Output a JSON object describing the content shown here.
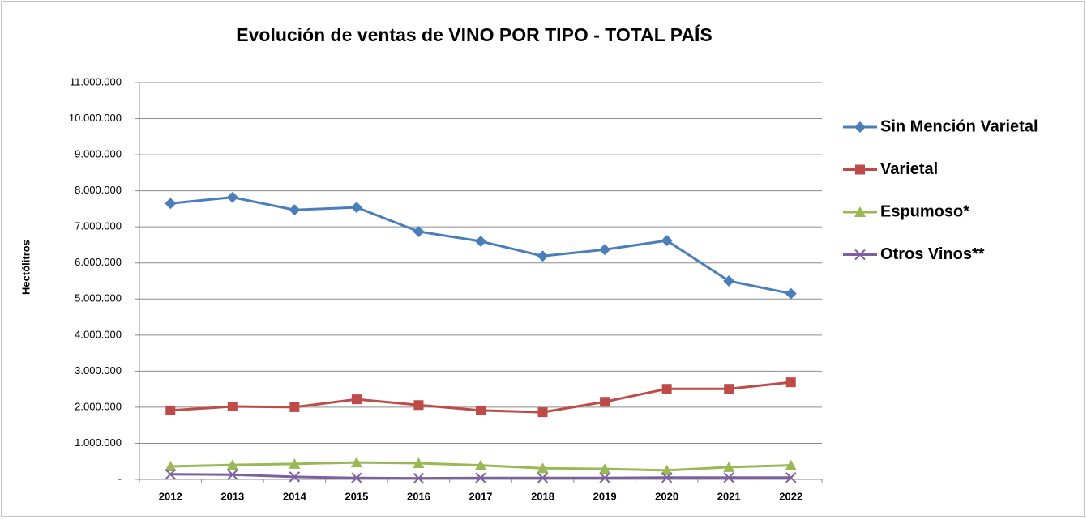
{
  "chart_data": {
    "type": "line",
    "title": "Evolución de ventas de VINO POR TIPO - TOTAL PAÍS",
    "ylabel": "Hectólitros",
    "categories": [
      "2012",
      "2013",
      "2014",
      "2015",
      "2016",
      "2017",
      "2018",
      "2019",
      "2020",
      "2021",
      "2022"
    ],
    "series": [
      {
        "name": "Sin Mención Varietal",
        "color": "#4a7ebb",
        "marker": "diamond",
        "values": [
          7650000,
          7820000,
          7470000,
          7540000,
          6870000,
          6600000,
          6190000,
          6370000,
          6620000,
          5500000,
          5150000
        ]
      },
      {
        "name": "Varietal",
        "color": "#be4b48",
        "marker": "square",
        "values": [
          1910000,
          2020000,
          2000000,
          2220000,
          2060000,
          1910000,
          1860000,
          2150000,
          2510000,
          2510000,
          2690000
        ]
      },
      {
        "name": "Espumoso*",
        "color": "#98b954",
        "marker": "triangle",
        "values": [
          360000,
          400000,
          430000,
          470000,
          450000,
          390000,
          310000,
          290000,
          250000,
          340000,
          390000
        ]
      },
      {
        "name": "Otros Vinos**",
        "color": "#7d60a0",
        "marker": "x",
        "values": [
          140000,
          130000,
          70000,
          40000,
          30000,
          40000,
          40000,
          40000,
          50000,
          50000,
          50000
        ]
      }
    ],
    "ylim": [
      0,
      11000000
    ],
    "yticks": [
      {
        "value": 0,
        "label": "-"
      },
      {
        "value": 1000000,
        "label": "1.000.000"
      },
      {
        "value": 2000000,
        "label": "2.000.000"
      },
      {
        "value": 3000000,
        "label": "3.000.000"
      },
      {
        "value": 4000000,
        "label": "4.000.000"
      },
      {
        "value": 5000000,
        "label": "5.000.000"
      },
      {
        "value": 6000000,
        "label": "6.000.000"
      },
      {
        "value": 7000000,
        "label": "7.000.000"
      },
      {
        "value": 8000000,
        "label": "8.000.000"
      },
      {
        "value": 9000000,
        "label": "9.000.000"
      },
      {
        "value": 10000000,
        "label": "10.000.000"
      },
      {
        "value": 11000000,
        "label": "11.000.000"
      }
    ],
    "grid": true,
    "legend": "right"
  }
}
